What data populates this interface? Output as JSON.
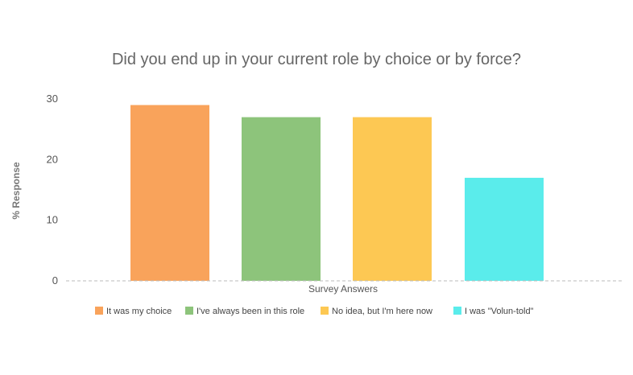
{
  "chart_data": {
    "type": "bar",
    "title": "Did you end up in your current role by choice or by force?",
    "xlabel": "Survey Answers",
    "ylabel": "% Response",
    "ylim": [
      0,
      30
    ],
    "yticks": [
      0,
      10,
      20,
      30
    ],
    "grid": false,
    "legend_position": "bottom",
    "categories": [
      "It was my choice",
      "I've always been in this role",
      "No idea, but I'm here now",
      "I was \"Volun-told\""
    ],
    "values": [
      29,
      27,
      27,
      17
    ],
    "colors": [
      "#F9A35B",
      "#8DC47B",
      "#FDC853",
      "#5AECEB"
    ],
    "axis_line_color": "#BBBBBB"
  }
}
